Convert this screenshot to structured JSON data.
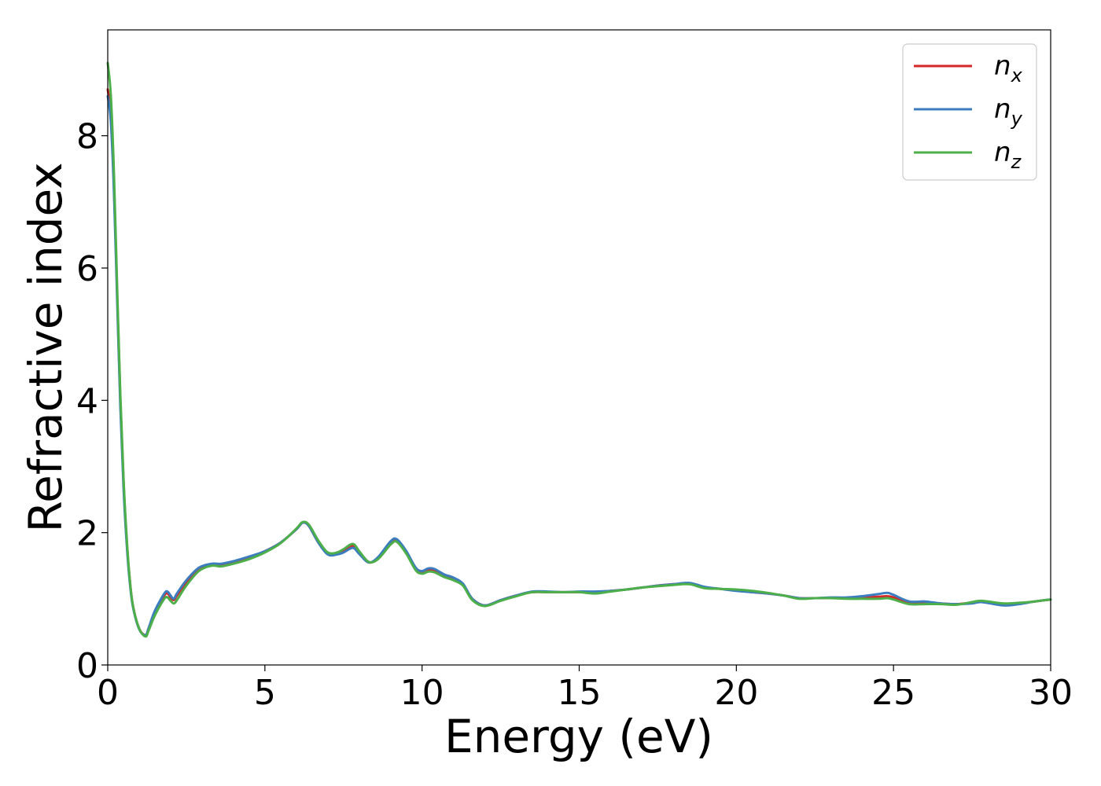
{
  "chart_data": {
    "type": "line",
    "title": "",
    "xlabel": "Energy (eV)",
    "ylabel": "Refractive index",
    "xlim": [
      0,
      30
    ],
    "ylim": [
      0,
      9.6
    ],
    "xticks": [
      0,
      5,
      10,
      15,
      20,
      25,
      30
    ],
    "yticks": [
      0,
      2,
      4,
      6,
      8
    ],
    "xtick_labels": [
      "0",
      "5",
      "10",
      "15",
      "20",
      "25",
      "30"
    ],
    "ytick_labels": [
      "0",
      "2",
      "4",
      "6",
      "8"
    ],
    "grid": false,
    "legend_position": "top-right",
    "series": [
      {
        "name": "n_x",
        "label_base": "n",
        "label_sub": "x",
        "color": "#d62728",
        "x": [
          0,
          0.1,
          0.2,
          0.3,
          0.4,
          0.5,
          0.6,
          0.7,
          0.8,
          1.0,
          1.2,
          1.3,
          1.5,
          1.8,
          1.9,
          2.0,
          2.1,
          2.2,
          2.5,
          2.9,
          3.3,
          3.6,
          4.0,
          4.5,
          5.0,
          5.5,
          6.0,
          6.2,
          6.4,
          6.7,
          7.0,
          7.3,
          7.5,
          7.8,
          8.0,
          8.3,
          8.6,
          9.0,
          9.2,
          9.5,
          9.8,
          10.0,
          10.2,
          10.4,
          10.7,
          11.0,
          11.3,
          11.6,
          12.0,
          12.5,
          13.0,
          13.5,
          14.0,
          14.5,
          15.0,
          15.5,
          16.0,
          16.5,
          17.0,
          17.5,
          18.0,
          18.5,
          19.0,
          19.5,
          20.0,
          20.5,
          21.0,
          21.5,
          22.0,
          22.5,
          23.0,
          23.5,
          24.0,
          24.5,
          24.8,
          25.0,
          25.5,
          26.0,
          26.5,
          27.0,
          27.5,
          27.8,
          28.5,
          29.0,
          29.5,
          30.0
        ],
        "y": [
          8.7,
          8.3,
          7.2,
          5.6,
          4.0,
          2.8,
          1.9,
          1.3,
          0.9,
          0.55,
          0.45,
          0.55,
          0.8,
          1.05,
          1.08,
          1.02,
          0.98,
          1.05,
          1.25,
          1.45,
          1.52,
          1.52,
          1.56,
          1.63,
          1.72,
          1.85,
          2.05,
          2.15,
          2.1,
          1.85,
          1.68,
          1.68,
          1.72,
          1.8,
          1.7,
          1.55,
          1.62,
          1.85,
          1.88,
          1.7,
          1.45,
          1.4,
          1.44,
          1.42,
          1.35,
          1.3,
          1.22,
          1.0,
          0.9,
          0.98,
          1.05,
          1.1,
          1.1,
          1.1,
          1.1,
          1.1,
          1.12,
          1.14,
          1.17,
          1.2,
          1.22,
          1.23,
          1.17,
          1.15,
          1.13,
          1.1,
          1.08,
          1.05,
          1.01,
          1.01,
          1.01,
          1.01,
          1.02,
          1.03,
          1.04,
          1.02,
          0.94,
          0.94,
          0.93,
          0.92,
          0.94,
          0.95,
          0.92,
          0.93,
          0.96,
          0.99
        ]
      },
      {
        "name": "n_y",
        "label_base": "n",
        "label_sub": "y",
        "color": "#3b7dbf",
        "x": [
          0,
          0.1,
          0.2,
          0.3,
          0.4,
          0.5,
          0.6,
          0.7,
          0.8,
          1.0,
          1.2,
          1.3,
          1.5,
          1.8,
          1.9,
          2.0,
          2.1,
          2.2,
          2.5,
          2.9,
          3.3,
          3.6,
          4.0,
          4.5,
          5.0,
          5.5,
          6.0,
          6.2,
          6.4,
          6.7,
          7.0,
          7.3,
          7.5,
          7.8,
          8.0,
          8.3,
          8.6,
          9.0,
          9.2,
          9.5,
          9.8,
          10.0,
          10.2,
          10.4,
          10.7,
          11.0,
          11.3,
          11.6,
          12.0,
          12.5,
          13.0,
          13.5,
          14.0,
          14.5,
          15.0,
          15.5,
          16.0,
          16.5,
          17.0,
          17.5,
          18.0,
          18.5,
          19.0,
          19.5,
          20.0,
          20.5,
          21.0,
          21.5,
          22.0,
          22.5,
          23.0,
          23.5,
          24.0,
          24.5,
          24.8,
          25.0,
          25.5,
          26.0,
          26.5,
          27.0,
          27.5,
          27.8,
          28.5,
          29.0,
          29.5,
          30.0
        ],
        "y": [
          8.6,
          8.2,
          7.1,
          5.5,
          3.9,
          2.7,
          1.85,
          1.25,
          0.88,
          0.54,
          0.45,
          0.56,
          0.82,
          1.08,
          1.11,
          1.05,
          1.0,
          1.08,
          1.28,
          1.47,
          1.53,
          1.53,
          1.57,
          1.64,
          1.72,
          1.85,
          2.05,
          2.15,
          2.1,
          1.85,
          1.67,
          1.67,
          1.7,
          1.77,
          1.68,
          1.55,
          1.63,
          1.87,
          1.9,
          1.72,
          1.47,
          1.42,
          1.46,
          1.45,
          1.37,
          1.32,
          1.23,
          1.0,
          0.9,
          0.98,
          1.05,
          1.11,
          1.11,
          1.1,
          1.11,
          1.11,
          1.12,
          1.14,
          1.17,
          1.2,
          1.22,
          1.24,
          1.18,
          1.15,
          1.12,
          1.1,
          1.08,
          1.05,
          1.01,
          1.01,
          1.02,
          1.02,
          1.04,
          1.07,
          1.09,
          1.06,
          0.96,
          0.96,
          0.93,
          0.92,
          0.93,
          0.95,
          0.9,
          0.92,
          0.96,
          0.99
        ]
      },
      {
        "name": "n_z",
        "label_base": "n",
        "label_sub": "z",
        "color": "#4daf4a",
        "x": [
          0,
          0.1,
          0.2,
          0.3,
          0.4,
          0.5,
          0.6,
          0.7,
          0.8,
          1.0,
          1.2,
          1.3,
          1.5,
          1.8,
          1.9,
          2.0,
          2.1,
          2.2,
          2.5,
          2.9,
          3.3,
          3.6,
          4.0,
          4.5,
          5.0,
          5.5,
          6.0,
          6.2,
          6.4,
          6.7,
          7.0,
          7.3,
          7.5,
          7.8,
          8.0,
          8.3,
          8.6,
          9.0,
          9.2,
          9.5,
          9.8,
          10.0,
          10.2,
          10.4,
          10.7,
          11.0,
          11.3,
          11.6,
          12.0,
          12.5,
          13.0,
          13.5,
          14.0,
          14.5,
          15.0,
          15.5,
          16.0,
          16.5,
          17.0,
          17.5,
          18.0,
          18.5,
          19.0,
          19.5,
          20.0,
          20.5,
          21.0,
          21.5,
          22.0,
          22.5,
          23.0,
          23.5,
          24.0,
          24.5,
          24.8,
          25.0,
          25.5,
          26.0,
          26.5,
          27.0,
          27.5,
          27.8,
          28.5,
          29.0,
          29.5,
          30.0
        ],
        "y": [
          9.1,
          8.6,
          7.4,
          5.7,
          4.1,
          2.85,
          1.95,
          1.3,
          0.9,
          0.55,
          0.43,
          0.52,
          0.75,
          1.0,
          1.02,
          0.97,
          0.93,
          0.98,
          1.2,
          1.42,
          1.5,
          1.49,
          1.53,
          1.6,
          1.7,
          1.84,
          2.06,
          2.16,
          2.12,
          1.88,
          1.7,
          1.7,
          1.75,
          1.83,
          1.72,
          1.56,
          1.6,
          1.82,
          1.86,
          1.68,
          1.43,
          1.38,
          1.41,
          1.4,
          1.33,
          1.28,
          1.2,
          0.98,
          0.89,
          0.97,
          1.04,
          1.1,
          1.1,
          1.1,
          1.1,
          1.08,
          1.11,
          1.14,
          1.17,
          1.19,
          1.21,
          1.22,
          1.16,
          1.15,
          1.14,
          1.12,
          1.09,
          1.05,
          1.0,
          1.01,
          1.01,
          1.0,
          1.0,
          1.0,
          1.01,
          0.99,
          0.92,
          0.92,
          0.92,
          0.91,
          0.95,
          0.97,
          0.93,
          0.94,
          0.96,
          0.99
        ]
      }
    ]
  }
}
